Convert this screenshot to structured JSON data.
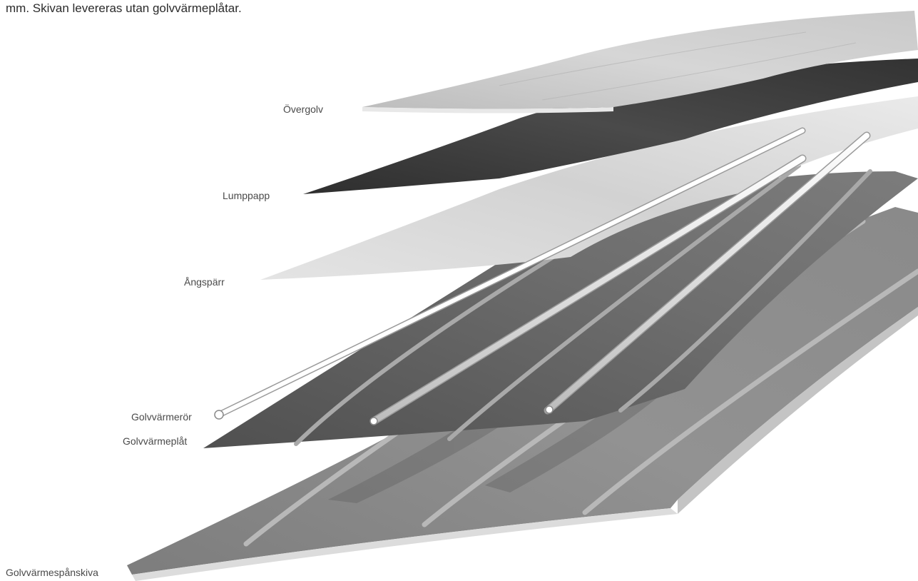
{
  "intro_text": "mm. Skivan levereras utan golvvärmeplåtar.",
  "labels": {
    "overgolv": "Övergolv",
    "lumppapp": "Lumppapp",
    "angsparr": "Ångspärr",
    "golvvarmeror": "Golvvärmerör",
    "golvvarmeplat": "Golvvärmeplåt",
    "golvvarmespanskiva": "Golvvärmespånskiva"
  }
}
